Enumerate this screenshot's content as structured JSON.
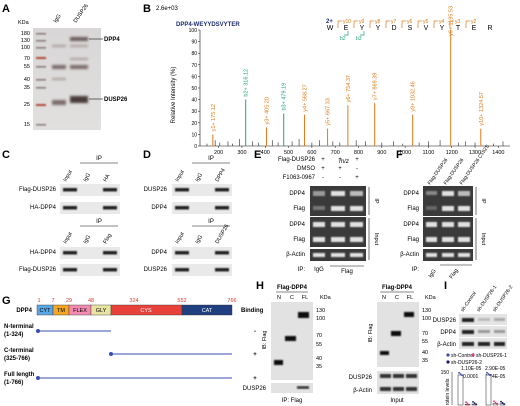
{
  "panels": [
    "A",
    "B",
    "C",
    "D",
    "E",
    "F",
    "G",
    "H",
    "I"
  ],
  "colors": {
    "ion_b": "#1fa37a",
    "ion_y": "#e07b1a",
    "ion_y_text": "#d97706",
    "peptide_title": "#1f2d6e",
    "cyt": "#5aa7e6",
    "tm": "#f5a623",
    "flex": "#f28ab2",
    "gly": "#e8e3a0",
    "cys": "#e8413a",
    "cat": "#1f3f80",
    "domain_num": "#d63a2f",
    "ctrl_dot": "#3a4fb0",
    "shdusp_dot": "#d04080",
    "shdusp2_dot": "#1d1d6b"
  },
  "A": {
    "kda_label": "KDa",
    "columns": [
      "IgG",
      "DUSP26"
    ],
    "markers": [
      "180",
      "130",
      "100",
      "70",
      "55",
      "40",
      "35",
      "25",
      "15"
    ],
    "bands": [
      "DPP4",
      "DUSP26"
    ]
  },
  "B": {
    "scale": "2.6e+03",
    "peptide": "DPP4-WEYYDSVYTER",
    "charge": "2+",
    "sequence": [
      "W",
      "E",
      "Y",
      "Y",
      "D",
      "S",
      "V",
      "Y",
      "T",
      "E",
      "R"
    ],
    "y_ions_top": [
      "y10",
      "y9",
      "y8",
      "y7",
      "y6",
      "y5",
      "y4",
      "y3",
      "y2"
    ],
    "b_ions_bottom": [
      "b2",
      "b3"
    ],
    "ylabel": "Relative Intensity (%)",
    "xlabel": "m/z",
    "yticks": [
      "100",
      "90",
      "80",
      "70",
      "60",
      "50",
      "40",
      "30",
      "20",
      "10",
      "0"
    ],
    "xticks": [
      "200",
      "300",
      "400",
      "500",
      "600",
      "700",
      "800",
      "900",
      "1000",
      "1100",
      "1200",
      "1300",
      "1400"
    ],
    "peaks": [
      {
        "mz": 175.12,
        "rel": 10,
        "label": "y1+ 175.12",
        "ion": "y"
      },
      {
        "mz": 316.12,
        "rel": 40,
        "label": "b2+ 316.12",
        "ion": "b"
      },
      {
        "mz": 405.2,
        "rel": 16,
        "label": "y3+ 405.20",
        "ion": "y"
      },
      {
        "mz": 479.19,
        "rel": 28,
        "label": "b3+ 479.19",
        "ion": "b"
      },
      {
        "mz": 568.27,
        "rel": 27,
        "label": "y4+ 568.27",
        "ion": "y"
      },
      {
        "mz": 667.33,
        "rel": 15,
        "label": "y5+ 667.33",
        "ion": "y"
      },
      {
        "mz": 754.37,
        "rel": 35,
        "label": "y6+ 754.37",
        "ion": "y"
      },
      {
        "mz": 869.39,
        "rel": 37,
        "label": "y7+ 869.39",
        "ion": "y"
      },
      {
        "mz": 1032.46,
        "rel": 27,
        "label": "y8+ 1032.46",
        "ion": "y"
      },
      {
        "mz": 1195.53,
        "rel": 100,
        "label": "y9+ 1195.53",
        "ion": "y"
      },
      {
        "mz": 1324.57,
        "rel": 15,
        "label": "y10+ 1324.57",
        "ion": "y"
      }
    ],
    "noise": [
      [
        150,
        2
      ],
      [
        185,
        5
      ],
      [
        205,
        3
      ],
      [
        240,
        4
      ],
      [
        260,
        2
      ],
      [
        290,
        6
      ],
      [
        345,
        4
      ],
      [
        372,
        3
      ],
      [
        430,
        5
      ],
      [
        455,
        3
      ],
      [
        515,
        4
      ],
      [
        545,
        6
      ],
      [
        600,
        3
      ],
      [
        632,
        5
      ],
      [
        690,
        4
      ],
      [
        720,
        3
      ],
      [
        790,
        5
      ],
      [
        830,
        4
      ],
      [
        900,
        3
      ],
      [
        950,
        4
      ],
      [
        990,
        2
      ],
      [
        1060,
        3
      ],
      [
        1100,
        4
      ],
      [
        1150,
        5
      ],
      [
        1230,
        3
      ],
      [
        1260,
        4
      ],
      [
        1300,
        3
      ],
      [
        1380,
        2
      ],
      [
        1420,
        4
      ]
    ]
  },
  "C": {
    "ip_label": "IP",
    "top": {
      "cols": [
        "Input",
        "IgG",
        "HA"
      ],
      "rows": [
        "Flag-DUSP26",
        "HA-DPP4"
      ]
    },
    "bottom": {
      "cols": [
        "Input",
        "IgG",
        "Flag"
      ],
      "rows": [
        "HA-DPP4",
        "Flag-DUSP26"
      ]
    }
  },
  "D": {
    "ip_label": "IP",
    "top": {
      "cols": [
        "Input",
        "IgG",
        "DPP4"
      ],
      "rows": [
        "DUSP26",
        "DPP4"
      ]
    },
    "bottom": {
      "cols": [
        "Input",
        "IgG",
        "DUSP26"
      ],
      "rows": [
        "DPP4",
        "DUSP26"
      ]
    }
  },
  "E": {
    "treatments": [
      "Flag-DUSP26",
      "DMSO",
      "F1063-0967"
    ],
    "signs": [
      [
        "+",
        "+",
        "+"
      ],
      [
        "+",
        "+",
        "-"
      ],
      [
        "-",
        "-",
        "+"
      ]
    ],
    "rows": [
      "DPP4",
      "Flag",
      "DPP4",
      "Flag",
      "β-Actin"
    ],
    "ip_side": "IP",
    "input_side": "Input",
    "bottom": {
      "label": "IP:",
      "c1": "IgG",
      "c2": "Flag"
    }
  },
  "F": {
    "cols": [
      "Flag-DUSP26",
      "Flag-DUSP26",
      "Flag-DUSP26 C152S"
    ],
    "rows": [
      "DPP4",
      "Flag",
      "DPP4",
      "Flag",
      "β-Actin"
    ],
    "ip_side": "IP",
    "input_side": "Input",
    "bottom": {
      "label": "IP:",
      "c1": "IgG",
      "c2": "Flag"
    }
  },
  "G": {
    "protein": "DPP4",
    "binding": "Binding",
    "domains": [
      "CYT",
      "TM",
      "FLEX",
      "GLY",
      "CYS",
      "CAT"
    ],
    "positions": [
      "1",
      "7",
      "29",
      "48",
      "324",
      "552",
      "766"
    ],
    "constructs": [
      {
        "name": "N-terminal",
        "range": "(1-324)",
        "sign": "-"
      },
      {
        "name": "C-terminal",
        "range": "(325-766)",
        "sign": "+"
      },
      {
        "name": "Full length",
        "range": "(1-766)",
        "sign": "+"
      }
    ]
  },
  "H": {
    "left": {
      "title": "Flag-DPP4",
      "cols": [
        "N",
        "C",
        "FL"
      ],
      "kda": "KDa",
      "markers": [
        "130",
        "100",
        "70",
        "55",
        "40",
        "35"
      ],
      "ib": "IB: Flag",
      "bottom_row": "DUSP26",
      "ip": "IP: Flag"
    },
    "right": {
      "title": "Flag-DPP4",
      "cols": [
        "N",
        "C",
        "FL"
      ],
      "kda": "KDa",
      "markers": [
        "130",
        "100",
        "70",
        "55",
        "40",
        "35"
      ],
      "ib": "IB: Flag",
      "rows": [
        "DUSP26",
        "β-Actin"
      ],
      "input": "Input"
    }
  },
  "I": {
    "cols": [
      "sh-Control",
      "sh-DUSP26-1",
      "sh-DUSP26-2"
    ],
    "rows": [
      "DUSP26",
      "DPP4",
      "β-Actin"
    ],
    "legend": [
      "sh-Control",
      "sh-DUSP26-1",
      "sh-DUSP26-2"
    ],
    "pvals": [
      "1.10E-05",
      "0.0001",
      "2.90E-05",
      "1.24E-05"
    ],
    "ylabel": "rotein levels",
    "ytick_top": "150",
    "bars": [
      {
        "group": "DUSP26",
        "ctrl": 1.0,
        "sh1": 0.02,
        "sh2": 0.03
      },
      {
        "group": "DPP4",
        "ctrl": 1.0,
        "sh1": 0.05,
        "sh2": 0.04
      }
    ]
  }
}
